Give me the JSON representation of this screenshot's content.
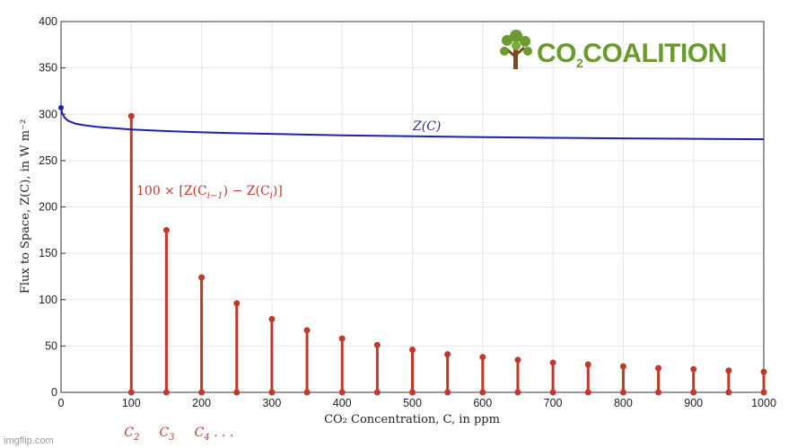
{
  "chart_data": {
    "type": "stem+line",
    "xlabel": "CO₂ Concentration, C, in ppm",
    "ylabel": "Flux to Space, Z(C), in W m⁻²",
    "xlim": [
      0,
      1000
    ],
    "ylim": [
      0,
      400
    ],
    "x_ticks": [
      0,
      100,
      200,
      300,
      400,
      500,
      600,
      700,
      800,
      900,
      1000
    ],
    "y_ticks": [
      0,
      50,
      100,
      150,
      200,
      250,
      300,
      350,
      400
    ],
    "grid": true,
    "series": [
      {
        "name": "Z(C)",
        "type": "line",
        "color": "#1f1fb0",
        "x": [
          0,
          1,
          2,
          5,
          10,
          20,
          30,
          50,
          75,
          100,
          150,
          200,
          250,
          300,
          400,
          500,
          600,
          700,
          800,
          900,
          1000
        ],
        "y": [
          307,
          303,
          300.5,
          296.5,
          293,
          290,
          288.5,
          286.5,
          285,
          283.5,
          281.8,
          280.5,
          279.5,
          278.8,
          277.3,
          276.2,
          275.3,
          274.6,
          274.0,
          273.5,
          273.0
        ]
      },
      {
        "name": "100 × [Z(C_{i−1}) − Z(C_i)]",
        "type": "stem",
        "color": "#c0392b",
        "x": [
          100,
          150,
          200,
          250,
          300,
          350,
          400,
          450,
          500,
          550,
          600,
          650,
          700,
          750,
          800,
          850,
          900,
          950,
          1000
        ],
        "y": [
          298,
          175,
          124,
          96,
          79,
          67,
          58,
          51,
          46,
          41,
          38,
          35,
          32,
          30,
          28,
          26,
          25,
          23.5,
          22
        ]
      }
    ],
    "start_marker": {
      "x": 0,
      "y": 307
    },
    "annotations": {
      "series_label": "Z(C)",
      "stem_label": "100 × [Z(C",
      "stem_label_sub1": "i−1",
      "stem_label_mid": ") − Z(C",
      "stem_label_sub2": "i",
      "stem_label_end": ")]",
      "c_labels": [
        {
          "main": "C",
          "sub": "2",
          "x": 100
        },
        {
          "main": "C",
          "sub": "3",
          "x": 150
        },
        {
          "main": "C",
          "sub": "4",
          "x": 200,
          "suffix": " . . ."
        }
      ]
    }
  },
  "logo": {
    "text_a": "CO",
    "text_sub": "2",
    "text_b": "COALITION",
    "colors": {
      "green": "#6b9a2f",
      "trunk": "#7a4a25"
    }
  },
  "watermark": "imgflip.com"
}
